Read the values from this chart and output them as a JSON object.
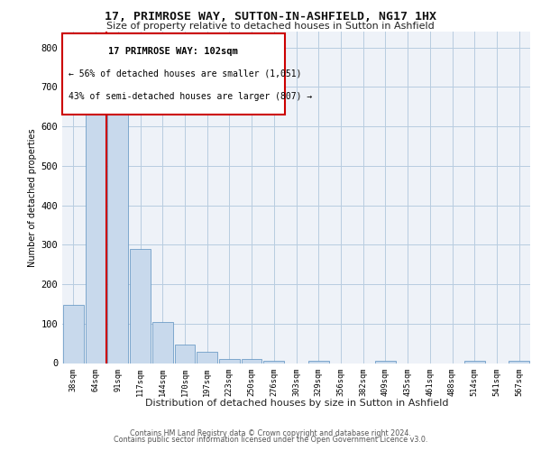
{
  "title": "17, PRIMROSE WAY, SUTTON-IN-ASHFIELD, NG17 1HX",
  "subtitle": "Size of property relative to detached houses in Sutton in Ashfield",
  "xlabel": "Distribution of detached houses by size in Sutton in Ashfield",
  "ylabel": "Number of detached properties",
  "footer_line1": "Contains HM Land Registry data © Crown copyright and database right 2024.",
  "footer_line2": "Contains public sector information licensed under the Open Government Licence v3.0.",
  "annotation_title": "17 PRIMROSE WAY: 102sqm",
  "annotation_line1": "← 56% of detached houses are smaller (1,051)",
  "annotation_line2": "43% of semi-detached houses are larger (807) →",
  "bar_color": "#c8d9ec",
  "bar_edge_color": "#5a8fc0",
  "marker_color": "#cc0000",
  "annotation_box_color": "#cc0000",
  "grid_color": "#c8d9ec",
  "background_color": "#eef2f8",
  "bin_labels": [
    "38sqm",
    "64sqm",
    "91sqm",
    "117sqm",
    "144sqm",
    "170sqm",
    "197sqm",
    "223sqm",
    "250sqm",
    "276sqm",
    "303sqm",
    "329sqm",
    "356sqm",
    "382sqm",
    "409sqm",
    "435sqm",
    "461sqm",
    "488sqm",
    "514sqm",
    "541sqm",
    "567sqm"
  ],
  "bar_values": [
    148,
    632,
    630,
    290,
    103,
    47,
    29,
    11,
    11,
    6,
    0,
    5,
    0,
    0,
    6,
    0,
    0,
    0,
    6,
    0,
    6
  ],
  "property_bin_index": 2,
  "ylim": [
    0,
    840
  ],
  "yticks": [
    0,
    100,
    200,
    300,
    400,
    500,
    600,
    700,
    800
  ]
}
